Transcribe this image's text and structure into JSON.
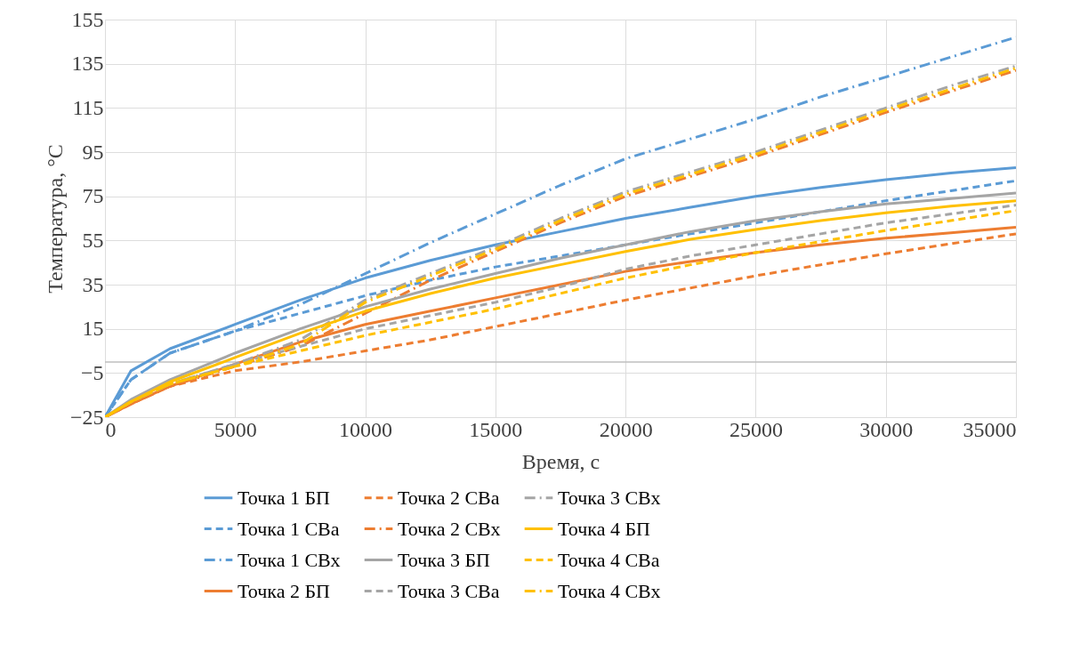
{
  "chart_data": {
    "type": "line",
    "xlabel": "Время, с",
    "ylabel": "Температура, °C",
    "x": [
      0,
      1000,
      2500,
      5000,
      7500,
      10000,
      12500,
      15000,
      17500,
      20000,
      22500,
      25000,
      27500,
      30000,
      32500,
      35000
    ],
    "xlim": [
      0,
      35000
    ],
    "xticks": [
      0,
      5000,
      10000,
      15000,
      20000,
      25000,
      30000,
      35000
    ],
    "ylim": [
      -25,
      155
    ],
    "yticks": [
      -25,
      -5,
      15,
      35,
      55,
      75,
      95,
      115,
      135,
      155
    ],
    "grid": true,
    "legend": "bottom",
    "marker": "none",
    "ref_lines": [
      {
        "axis": "y",
        "value": 0,
        "color": "#bfbfbf",
        "line_style": "solid"
      }
    ],
    "series": [
      {
        "name": "Точка 1 БП",
        "color": "#5b9bd5",
        "line_style": "solid",
        "values": [
          -25,
          -4,
          6,
          17,
          28,
          38,
          46,
          53,
          59,
          65,
          70,
          75,
          79,
          82.5,
          85.5,
          88
        ]
      },
      {
        "name": "Точка 1 СВа",
        "color": "#5b9bd5",
        "line_style": "dashed",
        "values": [
          -25,
          -8,
          4,
          14,
          22,
          30,
          37,
          43,
          48,
          53,
          58,
          63,
          68,
          73,
          77.5,
          82
        ]
      },
      {
        "name": "Точка 1 СВх",
        "color": "#5b9bd5",
        "line_style": "dashdot",
        "values": [
          -25,
          -8,
          4,
          14,
          26,
          40,
          54,
          67,
          80,
          92,
          101,
          110,
          120,
          129,
          138,
          147
        ]
      },
      {
        "name": "Точка 2 БП",
        "color": "#ed7d31",
        "line_style": "solid",
        "values": [
          -25,
          -19,
          -11,
          -1,
          9,
          17,
          23,
          29,
          35,
          41,
          45.5,
          49.5,
          53,
          56,
          58.5,
          61
        ]
      },
      {
        "name": "Точка 2 СВа",
        "color": "#ed7d31",
        "line_style": "dashed",
        "values": [
          -25,
          -19,
          -11,
          -4,
          0,
          5,
          10,
          16,
          22,
          28,
          33.5,
          39,
          44,
          49,
          53.5,
          58
        ]
      },
      {
        "name": "Точка 2 СВх",
        "color": "#ed7d31",
        "line_style": "dashdot",
        "values": [
          -25,
          -19,
          -11,
          -2,
          7,
          22,
          37,
          50,
          63,
          75,
          84,
          93,
          103,
          113,
          122.5,
          132
        ]
      },
      {
        "name": "Точка 3 БП",
        "color": "#a5a5a5",
        "line_style": "solid",
        "values": [
          -25,
          -17,
          -8,
          4,
          15,
          25,
          33,
          40,
          47,
          53,
          59,
          64,
          68,
          71.5,
          74,
          76.5
        ]
      },
      {
        "name": "Точка 3 СВа",
        "color": "#a5a5a5",
        "line_style": "dashed",
        "values": [
          -25,
          -18,
          -10,
          -1,
          7,
          15,
          21,
          27,
          34,
          42,
          48,
          53,
          58,
          63,
          67,
          71
        ]
      },
      {
        "name": "Точка 3 СВх",
        "color": "#a5a5a5",
        "line_style": "dashdot",
        "values": [
          -25,
          -18,
          -10,
          -1,
          10,
          28,
          40,
          52,
          65,
          77,
          86,
          95,
          105,
          115,
          125,
          134
        ]
      },
      {
        "name": "Точка 4 БП",
        "color": "#ffc000",
        "line_style": "solid",
        "values": [
          -25,
          -18,
          -9,
          2,
          13,
          23,
          31,
          38,
          44,
          50,
          55.5,
          60,
          64,
          67.5,
          70.5,
          73
        ]
      },
      {
        "name": "Точка 4 СВа",
        "color": "#ffc000",
        "line_style": "dashed",
        "values": [
          -25,
          -18,
          -10,
          -2,
          5,
          12,
          18,
          24,
          31,
          38,
          44,
          49.5,
          54.5,
          59.5,
          64,
          68.5
        ]
      },
      {
        "name": "Точка 4 СВх",
        "color": "#ffc000",
        "line_style": "dashdot",
        "values": [
          -25,
          -18,
          -10,
          -2,
          8,
          27,
          39,
          51,
          64,
          76,
          85,
          94,
          104,
          114,
          123.5,
          133
        ]
      }
    ]
  }
}
